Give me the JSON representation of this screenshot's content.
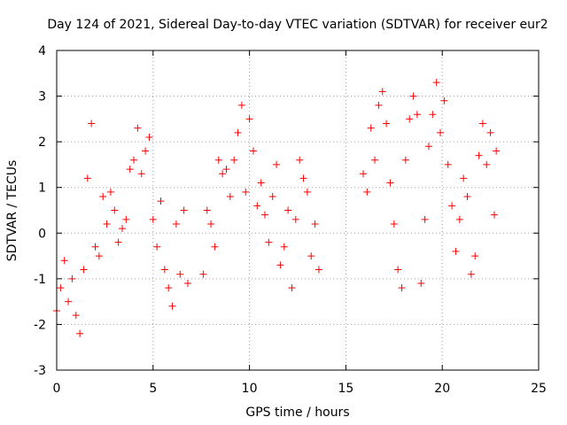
{
  "chart_data": {
    "type": "scatter",
    "title": "Day 124 of 2021, Sidereal Day-to-day VTEC variation (SDTVAR) for receiver eur2",
    "xlabel": "GPS time / hours",
    "ylabel": "SDTVAR / TECUs",
    "xlim": [
      0,
      25
    ],
    "ylim": [
      -3,
      4
    ],
    "xticks": [
      0,
      5,
      10,
      15,
      20,
      25
    ],
    "yticks": [
      -3,
      -2,
      -1,
      0,
      1,
      2,
      3,
      4
    ],
    "grid": true,
    "marker": "+",
    "color": "#ff0000",
    "series": [
      {
        "name": "eur2",
        "x": [
          0.0,
          0.2,
          0.4,
          0.6,
          0.8,
          1.0,
          1.2,
          1.4,
          1.6,
          1.8,
          2.0,
          2.2,
          2.4,
          2.6,
          2.8,
          3.0,
          3.2,
          3.4,
          3.6,
          3.8,
          4.0,
          4.2,
          4.4,
          4.6,
          4.8,
          5.0,
          5.2,
          5.4,
          5.6,
          5.8,
          6.0,
          6.2,
          6.4,
          6.6,
          6.8,
          7.6,
          7.8,
          8.0,
          8.2,
          8.4,
          8.6,
          8.8,
          9.0,
          9.2,
          9.4,
          9.6,
          9.8,
          10.0,
          10.2,
          10.4,
          10.6,
          10.8,
          11.0,
          11.2,
          11.4,
          11.6,
          11.8,
          12.0,
          12.2,
          12.4,
          12.6,
          12.8,
          13.0,
          13.2,
          13.4,
          13.6,
          15.9,
          16.1,
          16.3,
          16.5,
          16.7,
          16.9,
          17.1,
          17.3,
          17.5,
          17.7,
          17.9,
          18.1,
          18.3,
          18.5,
          18.7,
          18.9,
          19.1,
          19.3,
          19.5,
          19.7,
          19.9,
          20.1,
          20.3,
          20.5,
          20.7,
          20.9,
          21.1,
          21.3,
          21.5,
          21.7,
          21.9,
          22.1,
          22.3,
          22.5,
          22.7,
          22.8
        ],
        "y": [
          -1.7,
          -1.2,
          -0.6,
          -1.5,
          -1.0,
          -1.8,
          -2.2,
          -0.8,
          1.2,
          2.4,
          -0.3,
          -0.5,
          0.8,
          0.2,
          0.9,
          0.5,
          -0.2,
          0.1,
          0.3,
          1.4,
          1.6,
          2.3,
          1.3,
          1.8,
          2.1,
          0.3,
          -0.3,
          0.7,
          -0.8,
          -1.2,
          -1.6,
          0.2,
          -0.9,
          0.5,
          -1.1,
          -0.9,
          0.5,
          0.2,
          -0.3,
          1.6,
          1.3,
          1.4,
          0.8,
          1.6,
          2.2,
          2.8,
          0.9,
          2.5,
          1.8,
          0.6,
          1.1,
          0.4,
          -0.2,
          0.8,
          1.5,
          -0.7,
          -0.3,
          0.5,
          -1.2,
          0.3,
          1.6,
          1.2,
          0.9,
          -0.5,
          0.2,
          -0.8,
          1.3,
          0.9,
          2.3,
          1.6,
          2.8,
          3.1,
          2.4,
          1.1,
          0.2,
          -0.8,
          -1.2,
          1.6,
          2.5,
          3.0,
          2.6,
          -1.1,
          0.3,
          1.9,
          2.6,
          3.3,
          2.2,
          2.9,
          1.5,
          0.6,
          -0.4,
          0.3,
          1.2,
          0.8,
          -0.9,
          -0.5,
          1.7,
          2.4,
          1.5,
          2.2,
          0.4,
          1.8
        ]
      }
    ]
  }
}
